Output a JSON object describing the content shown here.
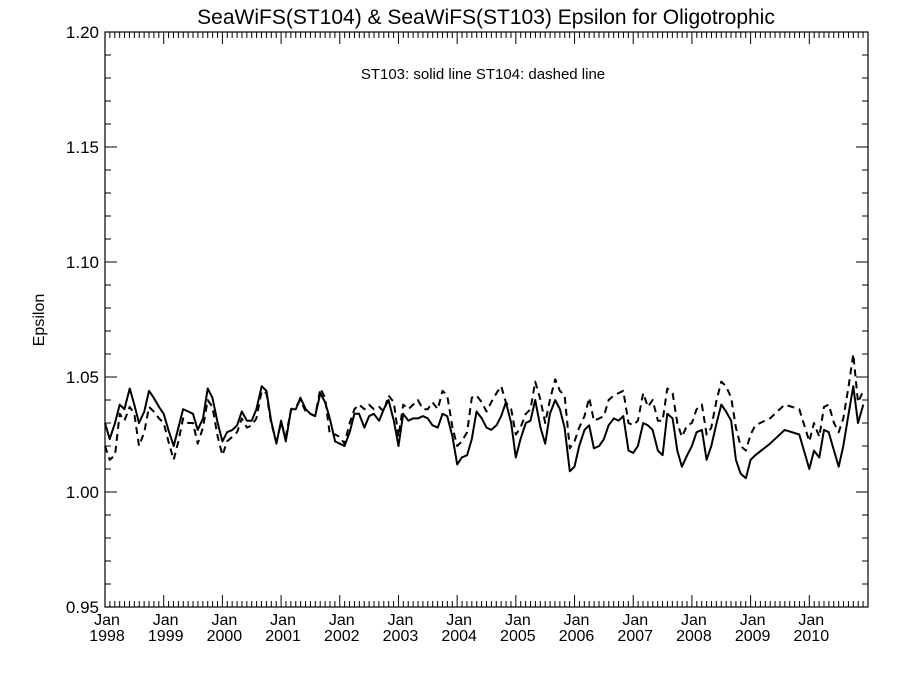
{
  "chart_data": {
    "type": "line",
    "title": "SeaWiFS(ST104) & SeaWiFS(ST103)  Epsilon for Oligotrophic",
    "ylabel": "Epsilon",
    "annotation": "ST103: solid line   ST104: dashed line",
    "xlim": [
      1998.0,
      2011.0
    ],
    "ylim": [
      0.95,
      1.2
    ],
    "yticks": [
      "0.95",
      "1.00",
      "1.05",
      "1.10",
      "1.15",
      "1.20"
    ],
    "xticks": [
      {
        "month": "Jan",
        "year": "1998"
      },
      {
        "month": "Jan",
        "year": "1999"
      },
      {
        "month": "Jan",
        "year": "2000"
      },
      {
        "month": "Jan",
        "year": "2001"
      },
      {
        "month": "Jan",
        "year": "2002"
      },
      {
        "month": "Jan",
        "year": "2003"
      },
      {
        "month": "Jan",
        "year": "2004"
      },
      {
        "month": "Jan",
        "year": "2005"
      },
      {
        "month": "Jan",
        "year": "2006"
      },
      {
        "month": "Jan",
        "year": "2007"
      },
      {
        "month": "Jan",
        "year": "2008"
      },
      {
        "month": "Jan",
        "year": "2009"
      },
      {
        "month": "Jan",
        "year": "2010"
      }
    ],
    "series": [
      {
        "name": "ST103",
        "style": "solid",
        "x": [
          1998.0,
          1998.08,
          1998.17,
          1998.25,
          1998.33,
          1998.42,
          1998.5,
          1998.58,
          1998.67,
          1998.75,
          1998.83,
          1998.92,
          1999.0,
          1999.08,
          1999.17,
          1999.25,
          1999.33,
          1999.42,
          1999.5,
          1999.58,
          1999.67,
          1999.75,
          1999.83,
          1999.92,
          2000.0,
          2000.08,
          2000.17,
          2000.25,
          2000.33,
          2000.42,
          2000.5,
          2000.58,
          2000.67,
          2000.75,
          2000.83,
          2000.92,
          2001.0,
          2001.08,
          2001.17,
          2001.25,
          2001.33,
          2001.42,
          2001.5,
          2001.58,
          2001.67,
          2001.75,
          2001.83,
          2001.92,
          2002.0,
          2002.08,
          2002.17,
          2002.25,
          2002.33,
          2002.42,
          2002.5,
          2002.58,
          2002.67,
          2002.75,
          2002.83,
          2002.92,
          2003.0,
          2003.08,
          2003.17,
          2003.25,
          2003.33,
          2003.42,
          2003.5,
          2003.58,
          2003.67,
          2003.75,
          2003.83,
          2003.92,
          2004.0,
          2004.08,
          2004.17,
          2004.25,
          2004.33,
          2004.42,
          2004.5,
          2004.58,
          2004.67,
          2004.75,
          2004.83,
          2004.92,
          2005.0,
          2005.08,
          2005.17,
          2005.25,
          2005.33,
          2005.42,
          2005.5,
          2005.58,
          2005.67,
          2005.75,
          2005.83,
          2005.92,
          2006.0,
          2006.08,
          2006.17,
          2006.25,
          2006.33,
          2006.42,
          2006.5,
          2006.58,
          2006.67,
          2006.75,
          2006.83,
          2006.92,
          2007.0,
          2007.08,
          2007.17,
          2007.25,
          2007.33,
          2007.42,
          2007.5,
          2007.58,
          2007.67,
          2007.75,
          2007.83,
          2007.92,
          2008.0,
          2008.08,
          2008.17,
          2008.25,
          2008.33,
          2008.42,
          2008.5,
          2008.58,
          2008.67,
          2008.75,
          2008.83,
          2008.92,
          2009.0,
          2009.08,
          2009.33,
          2009.58,
          2009.83,
          2010.0,
          2010.08,
          2010.17,
          2010.25,
          2010.33,
          2010.42,
          2010.5,
          2010.58,
          2010.67,
          2010.75,
          2010.83,
          2010.92
        ],
        "y": [
          1.03,
          1.023,
          1.03,
          1.038,
          1.036,
          1.045,
          1.038,
          1.03,
          1.035,
          1.044,
          1.041,
          1.037,
          1.034,
          1.027,
          1.02,
          1.028,
          1.036,
          1.035,
          1.034,
          1.027,
          1.032,
          1.045,
          1.041,
          1.03,
          1.022,
          1.026,
          1.027,
          1.029,
          1.035,
          1.031,
          1.031,
          1.036,
          1.046,
          1.044,
          1.031,
          1.021,
          1.031,
          1.022,
          1.036,
          1.036,
          1.041,
          1.036,
          1.034,
          1.033,
          1.043,
          1.039,
          1.032,
          1.022,
          1.021,
          1.02,
          1.026,
          1.034,
          1.034,
          1.028,
          1.033,
          1.034,
          1.031,
          1.036,
          1.04,
          1.031,
          1.02,
          1.034,
          1.031,
          1.032,
          1.032,
          1.033,
          1.032,
          1.029,
          1.028,
          1.034,
          1.033,
          1.024,
          1.012,
          1.015,
          1.016,
          1.023,
          1.035,
          1.032,
          1.028,
          1.027,
          1.029,
          1.033,
          1.039,
          1.03,
          1.015,
          1.023,
          1.03,
          1.031,
          1.04,
          1.028,
          1.021,
          1.034,
          1.04,
          1.036,
          1.028,
          1.009,
          1.011,
          1.02,
          1.027,
          1.029,
          1.019,
          1.02,
          1.023,
          1.029,
          1.032,
          1.031,
          1.033,
          1.018,
          1.017,
          1.02,
          1.03,
          1.029,
          1.027,
          1.018,
          1.016,
          1.034,
          1.032,
          1.018,
          1.011,
          1.016,
          1.02,
          1.026,
          1.027,
          1.014,
          1.02,
          1.03,
          1.038,
          1.035,
          1.031,
          1.014,
          1.008,
          1.006,
          1.014,
          1.016,
          1.021,
          1.027,
          1.025,
          1.01,
          1.018,
          1.015,
          1.027,
          1.026,
          1.018,
          1.011,
          1.02,
          1.034,
          1.046,
          1.03,
          1.038
        ]
      },
      {
        "name": "ST104",
        "style": "dashed",
        "x": [
          1998.0,
          1998.08,
          1998.17,
          1998.25,
          1998.33,
          1998.42,
          1998.5,
          1998.58,
          1998.67,
          1998.75,
          1998.83,
          1998.92,
          1999.0,
          1999.08,
          1999.17,
          1999.25,
          1999.33,
          1999.42,
          1999.5,
          1999.58,
          1999.67,
          1999.75,
          1999.83,
          1999.92,
          2000.0,
          2000.08,
          2000.17,
          2000.25,
          2000.33,
          2000.42,
          2000.5,
          2000.58,
          2000.67,
          2000.75,
          2000.83,
          2000.92,
          2001.0,
          2001.08,
          2001.17,
          2001.25,
          2001.33,
          2001.42,
          2001.5,
          2001.58,
          2001.67,
          2001.75,
          2001.83,
          2001.92,
          2002.0,
          2002.08,
          2002.17,
          2002.25,
          2002.33,
          2002.42,
          2002.5,
          2002.58,
          2002.67,
          2002.75,
          2002.83,
          2002.92,
          2003.0,
          2003.08,
          2003.17,
          2003.25,
          2003.33,
          2003.42,
          2003.5,
          2003.58,
          2003.67,
          2003.75,
          2003.83,
          2003.92,
          2004.0,
          2004.08,
          2004.17,
          2004.25,
          2004.33,
          2004.42,
          2004.5,
          2004.58,
          2004.67,
          2004.75,
          2004.83,
          2004.92,
          2005.0,
          2005.08,
          2005.17,
          2005.25,
          2005.33,
          2005.42,
          2005.5,
          2005.58,
          2005.67,
          2005.75,
          2005.83,
          2005.92,
          2006.0,
          2006.08,
          2006.17,
          2006.25,
          2006.33,
          2006.42,
          2006.5,
          2006.58,
          2006.67,
          2006.75,
          2006.83,
          2006.92,
          2007.0,
          2007.08,
          2007.17,
          2007.25,
          2007.33,
          2007.42,
          2007.5,
          2007.58,
          2007.67,
          2007.75,
          2007.83,
          2007.92,
          2008.0,
          2008.08,
          2008.17,
          2008.25,
          2008.33,
          2008.42,
          2008.5,
          2008.58,
          2008.67,
          2008.75,
          2008.83,
          2008.92,
          2009.0,
          2009.08,
          2009.33,
          2009.58,
          2009.83,
          2010.0,
          2010.08,
          2010.17,
          2010.25,
          2010.33,
          2010.42,
          2010.5,
          2010.58,
          2010.67,
          2010.75,
          2010.83,
          2010.92
        ],
        "y": [
          1.02,
          1.014,
          1.016,
          1.034,
          1.031,
          1.037,
          1.034,
          1.02,
          1.026,
          1.037,
          1.035,
          1.032,
          1.03,
          1.022,
          1.014,
          1.022,
          1.032,
          1.03,
          1.03,
          1.021,
          1.028,
          1.04,
          1.037,
          1.024,
          1.016,
          1.022,
          1.024,
          1.026,
          1.032,
          1.028,
          1.029,
          1.032,
          1.044,
          1.043,
          1.03,
          1.022,
          1.03,
          1.024,
          1.036,
          1.037,
          1.04,
          1.035,
          1.034,
          1.033,
          1.045,
          1.041,
          1.025,
          1.025,
          1.024,
          1.021,
          1.03,
          1.036,
          1.038,
          1.036,
          1.038,
          1.036,
          1.037,
          1.035,
          1.042,
          1.039,
          1.024,
          1.038,
          1.036,
          1.038,
          1.04,
          1.036,
          1.036,
          1.039,
          1.036,
          1.044,
          1.042,
          1.028,
          1.02,
          1.022,
          1.026,
          1.041,
          1.042,
          1.039,
          1.035,
          1.039,
          1.043,
          1.046,
          1.039,
          1.036,
          1.025,
          1.028,
          1.034,
          1.036,
          1.048,
          1.04,
          1.03,
          1.04,
          1.049,
          1.044,
          1.042,
          1.019,
          1.022,
          1.028,
          1.033,
          1.041,
          1.031,
          1.032,
          1.033,
          1.04,
          1.042,
          1.043,
          1.044,
          1.03,
          1.029,
          1.031,
          1.043,
          1.037,
          1.04,
          1.031,
          1.031,
          1.045,
          1.043,
          1.03,
          1.024,
          1.029,
          1.03,
          1.036,
          1.038,
          1.025,
          1.028,
          1.04,
          1.048,
          1.046,
          1.041,
          1.028,
          1.02,
          1.018,
          1.025,
          1.029,
          1.032,
          1.038,
          1.036,
          1.022,
          1.03,
          1.024,
          1.037,
          1.038,
          1.03,
          1.026,
          1.032,
          1.046,
          1.06,
          1.039,
          1.044
        ]
      }
    ]
  }
}
